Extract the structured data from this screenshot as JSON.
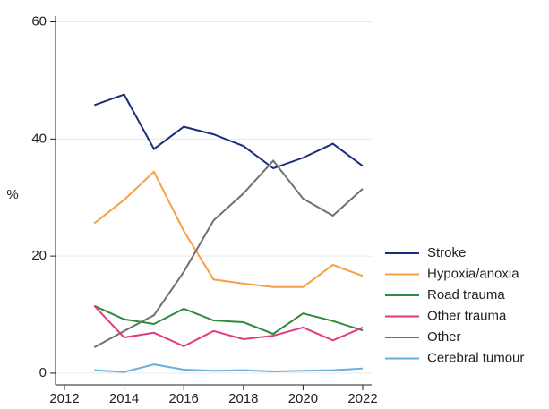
{
  "chart_data": {
    "type": "line",
    "y_label": "%",
    "x": [
      2013,
      2014,
      2015,
      2016,
      2017,
      2018,
      2019,
      2020,
      2021,
      2022
    ],
    "xlim": [
      2011.7,
      2022.3
    ],
    "xticks": [
      2012,
      2014,
      2016,
      2018,
      2020,
      2022
    ],
    "ylim": [
      -2,
      61
    ],
    "yticks": [
      0,
      20,
      40,
      60
    ],
    "grid": true,
    "legend": "right",
    "series": [
      {
        "name": "Stroke",
        "color": "#1b2c7c",
        "values": [
          45.8,
          47.6,
          38.3,
          42.1,
          40.8,
          38.8,
          35.0,
          36.8,
          39.2,
          35.4
        ]
      },
      {
        "name": "Hypoxia/anoxia",
        "color": "#f4a045",
        "values": [
          25.6,
          29.6,
          34.4,
          24.3,
          16.0,
          15.3,
          14.7,
          14.7,
          18.5,
          16.6
        ]
      },
      {
        "name": "Road trauma",
        "color": "#2e8b3a",
        "values": [
          11.5,
          9.2,
          8.4,
          11.0,
          9.0,
          8.7,
          6.7,
          10.2,
          8.9,
          7.3
        ]
      },
      {
        "name": "Other trauma",
        "color": "#e23a7c",
        "values": [
          11.5,
          6.1,
          6.9,
          4.6,
          7.2,
          5.8,
          6.4,
          7.8,
          5.6,
          7.8
        ]
      },
      {
        "name": "Other",
        "color": "#707070",
        "values": [
          4.4,
          7.2,
          9.9,
          17.3,
          26.1,
          30.7,
          36.3,
          29.8,
          26.9,
          31.5
        ]
      },
      {
        "name": "Cerebral tumour",
        "color": "#6aaee0",
        "values": [
          0.5,
          0.2,
          1.5,
          0.6,
          0.4,
          0.5,
          0.3,
          0.4,
          0.5,
          0.8
        ]
      }
    ]
  }
}
